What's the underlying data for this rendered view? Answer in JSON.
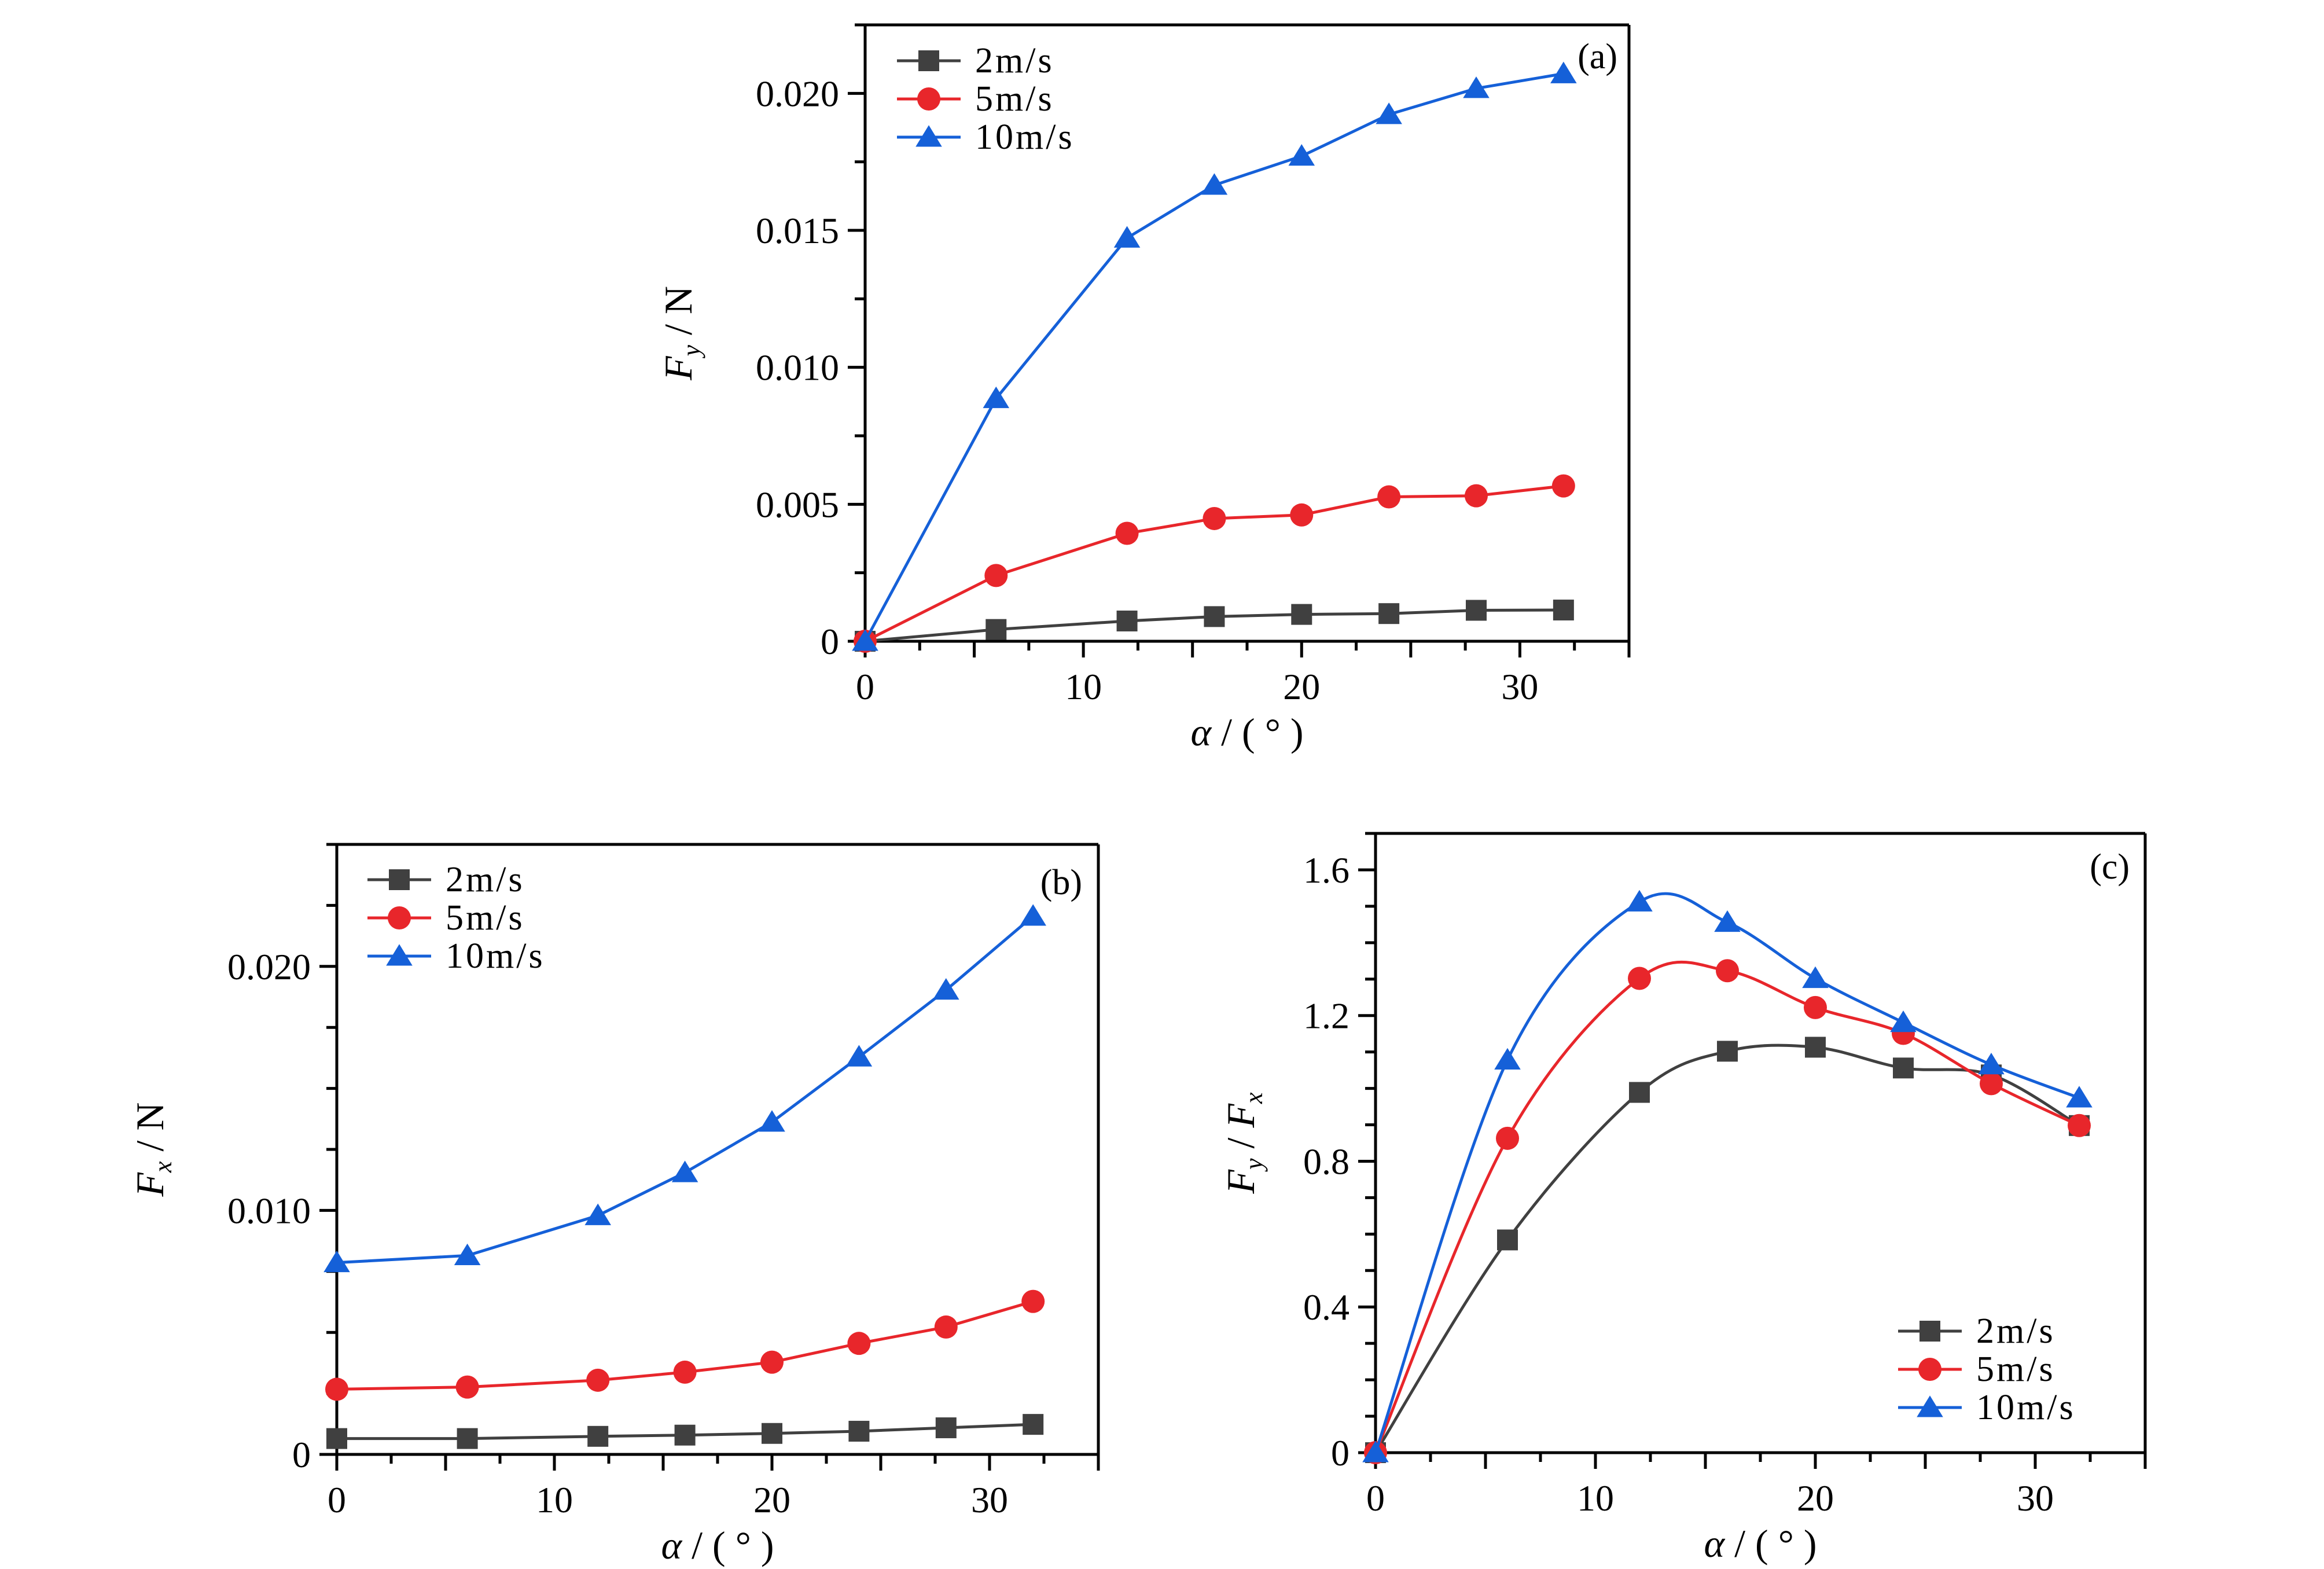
{
  "chart_data": [
    {
      "id": "a",
      "type": "line",
      "panel_label": "(a)",
      "xlabel": "α / ( ° )",
      "ylabel": "Fy / N",
      "ylabel_main": "F",
      "ylabel_sub": "y",
      "ylabel_unit": " / N",
      "xlim": [
        0,
        35
      ],
      "ylim": [
        0,
        0.0225
      ],
      "xticks": [
        0,
        10,
        20,
        30
      ],
      "xtick_labels": [
        "0",
        "10",
        "20",
        "30"
      ],
      "xminor_step": 2.5,
      "yticks": [
        0,
        0.005,
        0.01,
        0.015,
        0.02
      ],
      "ytick_labels": [
        "0",
        "0.005",
        "0.010",
        "0.015",
        "0.020"
      ],
      "yminor_step": 0.0025,
      "grid": false,
      "smooth": false,
      "legend_position": "top-left",
      "series": [
        {
          "name": "2m/s",
          "color": "#404040",
          "marker": "square",
          "x": [
            0,
            6,
            12,
            16,
            20,
            24,
            28,
            32
          ],
          "values": [
            0,
            0.00043,
            0.00074,
            0.0009,
            0.00098,
            0.00101,
            0.00113,
            0.00114
          ]
        },
        {
          "name": "5m/s",
          "color": "#e8262b",
          "marker": "circle",
          "x": [
            0,
            6,
            12,
            16,
            20,
            24,
            28,
            32
          ],
          "values": [
            0,
            0.0024,
            0.00394,
            0.00448,
            0.00461,
            0.00527,
            0.00531,
            0.00567
          ]
        },
        {
          "name": "10m/s",
          "color": "#1560d8",
          "marker": "triangle",
          "x": [
            0,
            6,
            12,
            16,
            20,
            24,
            28,
            32
          ],
          "values": [
            0,
            0.00886,
            0.01472,
            0.01665,
            0.01771,
            0.01923,
            0.02018,
            0.02072
          ]
        }
      ]
    },
    {
      "id": "b",
      "type": "line",
      "panel_label": "(b)",
      "xlabel": "α / ( ° )",
      "ylabel": "Fx / N",
      "ylabel_main": "F",
      "ylabel_sub": "x",
      "ylabel_unit": " / N",
      "xlim": [
        0,
        35
      ],
      "ylim": [
        0,
        0.025
      ],
      "xticks": [
        0,
        10,
        20,
        30
      ],
      "xtick_labels": [
        "0",
        "10",
        "20",
        "30"
      ],
      "xminor_step": 2.5,
      "yticks": [
        0,
        0.01,
        0.02
      ],
      "ytick_labels": [
        "0",
        "0.010",
        "0.020"
      ],
      "yminor_step": 0.0025,
      "grid": false,
      "smooth": false,
      "legend_position": "top-left",
      "series": [
        {
          "name": "2m/s",
          "color": "#404040",
          "marker": "square",
          "x": [
            0,
            6,
            12,
            16,
            20,
            24,
            28,
            32
          ],
          "values": [
            0.00065,
            0.00065,
            0.00074,
            0.00079,
            0.00086,
            0.00095,
            0.00109,
            0.00123
          ]
        },
        {
          "name": "5m/s",
          "color": "#e8262b",
          "marker": "circle",
          "x": [
            0,
            6,
            12,
            16,
            20,
            24,
            28,
            32
          ],
          "values": [
            0.00267,
            0.00276,
            0.00304,
            0.00337,
            0.00378,
            0.00455,
            0.00522,
            0.00627
          ]
        },
        {
          "name": "10m/s",
          "color": "#1560d8",
          "marker": "triangle",
          "x": [
            0,
            6,
            12,
            16,
            20,
            24,
            28,
            32
          ],
          "values": [
            0.00786,
            0.00815,
            0.00979,
            0.01155,
            0.01362,
            0.01629,
            0.01903,
            0.02206
          ]
        }
      ]
    },
    {
      "id": "c",
      "type": "line",
      "panel_label": "(c)",
      "xlabel": "α / ( ° )",
      "ylabel": "Fy / Fx",
      "ylabel_main": "F",
      "ylabel_sub": "y",
      "ylabel_unit": " / ",
      "ylabel_main2": "F",
      "ylabel_sub2": "x",
      "xlim": [
        0,
        35
      ],
      "ylim": [
        0,
        1.7
      ],
      "xticks": [
        0,
        10,
        20,
        30
      ],
      "xtick_labels": [
        "0",
        "10",
        "20",
        "30"
      ],
      "xminor_step": 2.5,
      "yticks": [
        0,
        0.4,
        0.8,
        1.2,
        1.6
      ],
      "ytick_labels": [
        "0",
        "0.4",
        "0.8",
        "1.2",
        "1.6"
      ],
      "yminor_step": 0.1,
      "grid": false,
      "smooth": true,
      "legend_position": "bottom-right",
      "series": [
        {
          "name": "2m/s",
          "color": "#404040",
          "marker": "square",
          "x": [
            0,
            6,
            12,
            16,
            20,
            24,
            28,
            32
          ],
          "values": [
            0,
            0.584,
            0.989,
            1.102,
            1.113,
            1.056,
            1.037,
            0.898
          ]
        },
        {
          "name": "5m/s",
          "color": "#e8262b",
          "marker": "circle",
          "x": [
            0,
            6,
            12,
            16,
            20,
            24,
            28,
            32
          ],
          "values": [
            0,
            0.863,
            1.302,
            1.323,
            1.222,
            1.151,
            1.013,
            0.898
          ]
        },
        {
          "name": "10m/s",
          "color": "#1560d8",
          "marker": "triangle",
          "x": [
            0,
            6,
            12,
            16,
            20,
            24,
            28,
            32
          ],
          "values": [
            0,
            1.078,
            1.512,
            1.456,
            1.302,
            1.181,
            1.065,
            0.974
          ]
        }
      ]
    }
  ]
}
